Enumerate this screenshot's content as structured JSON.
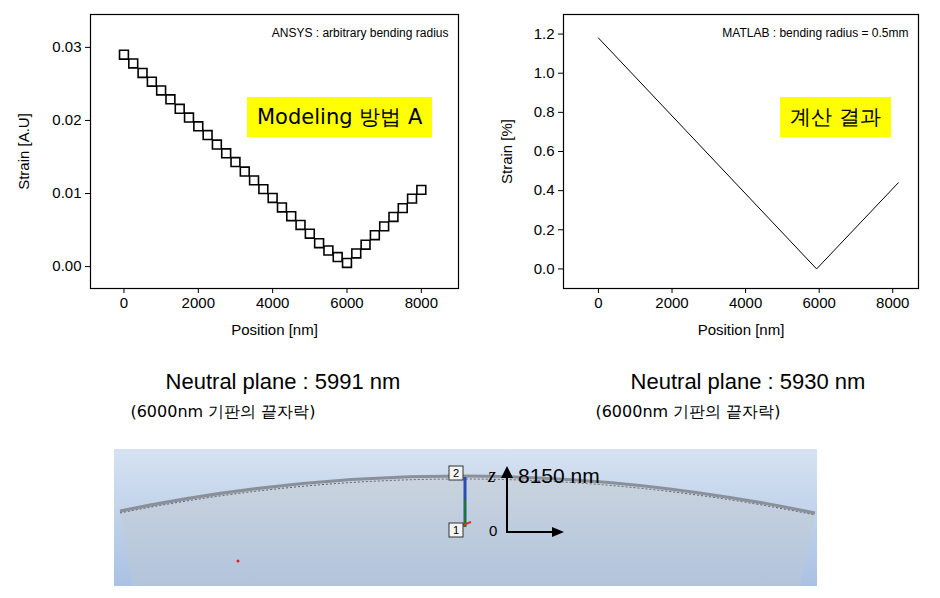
{
  "chart_data": [
    {
      "type": "scatter",
      "marker": "square",
      "color": "#000000",
      "x_label": "Position [nm]",
      "y_label": "Strain [A.U]",
      "x": [
        0,
        250,
        500,
        750,
        1000,
        1250,
        1500,
        1750,
        2000,
        2250,
        2500,
        2750,
        3000,
        3250,
        3500,
        3750,
        4000,
        4250,
        4500,
        4750,
        5000,
        5250,
        5500,
        5750,
        6000,
        6250,
        6500,
        6750,
        7000,
        7250,
        7500,
        7750,
        8000
      ],
      "values": [
        0.029,
        0.0278,
        0.0265,
        0.0253,
        0.0241,
        0.0229,
        0.0216,
        0.0204,
        0.0192,
        0.018,
        0.0167,
        0.0155,
        0.0143,
        0.013,
        0.0118,
        0.0106,
        0.0094,
        0.0081,
        0.0069,
        0.0057,
        0.0045,
        0.0032,
        0.0022,
        0.0013,
        0.0005,
        0.0018,
        0.003,
        0.0043,
        0.0055,
        0.0068,
        0.008,
        0.0093,
        0.0105
      ],
      "xlim": [
        -900,
        9000
      ],
      "xticks": [
        0,
        2000,
        4000,
        6000,
        8000
      ],
      "ylim": [
        -0.003,
        0.0345
      ],
      "yticks": [
        {
          "value": 0,
          "label": "0.00"
        },
        {
          "value": 0.01,
          "label": "0.01"
        },
        {
          "value": 0.02,
          "label": "0.02"
        },
        {
          "value": 0.03,
          "label": "0.03"
        }
      ],
      "grid": false,
      "annotations": {
        "note": "ANSYS : arbitrary bending radius",
        "badge": "Modeling 방법 A",
        "caption": "Neutral plane : 5991 nm",
        "caption_sub": "(6000nm 기판의 끝자락)"
      }
    },
    {
      "type": "line",
      "color": "#000000",
      "x_label": "Position [nm]",
      "y_label": "Strain [%]",
      "x": [
        0,
        5930,
        8150
      ],
      "values": [
        1.18,
        0,
        0.44
      ],
      "xlim": [
        -950,
        8700
      ],
      "xticks": [
        0,
        2000,
        4000,
        6000,
        8000
      ],
      "ylim": [
        -0.1,
        1.3
      ],
      "yticks": [
        {
          "value": 0,
          "label": "0.0"
        },
        {
          "value": 0.2,
          "label": "0.2"
        },
        {
          "value": 0.4,
          "label": "0.4"
        },
        {
          "value": 0.6,
          "label": "0.6"
        },
        {
          "value": 0.8,
          "label": "0.8"
        },
        {
          "value": 1,
          "label": "1.0"
        },
        {
          "value": 1.2,
          "label": "1.2"
        }
      ],
      "grid": false,
      "annotations": {
        "note": "MATLAB : bending radius = 0.5mm",
        "badge": "계산 결과",
        "caption": "Neutral plane : 5930 nm",
        "caption_sub": "(6000nm 기판의 끝자락)"
      }
    }
  ],
  "model_view": {
    "axis_name": "z",
    "height_label": "8150 nm",
    "origin_label": "0",
    "probe_labels": [
      "1",
      "2"
    ]
  }
}
